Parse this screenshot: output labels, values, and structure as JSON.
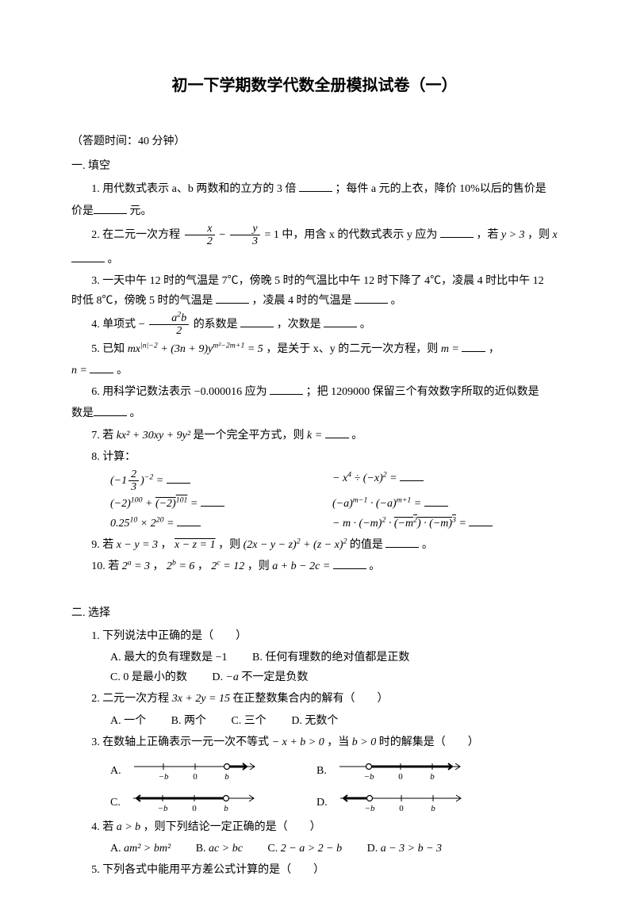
{
  "title": "初一下学期数学代数全册模拟试卷（一）",
  "meta": "（答题时间：40 分钟）",
  "sec1": {
    "head": "一. 填空",
    "q1a": "1. 用代数式表示 a、b 两数和的立方的 3 倍",
    "q1b": "；每件 a 元的上衣，降价 10%以后的售价是",
    "q1c": "元。",
    "q2a": "2. 在二元一次方程 ",
    "q2b": " 中，用含 x 的代数式表示 y 应为",
    "q2c": "，若 ",
    "q2d": "，则 ",
    "q2e": "。",
    "q3a": "3. 一天中午 12 时的气温是 7℃，傍晚 5 时的气温比中午 12 时下降了 4℃，凌晨 4 时比中午 12 时低 8℃，傍晚 5 时的气温是",
    "q3b": "，凌晨 4 时的气温是",
    "q3c": "。",
    "q4a": "4. 单项式 ",
    "q4b": " 的系数是",
    "q4c": "，次数是",
    "q4d": "。",
    "q5a": "5. 已知 ",
    "q5b": "，是关于 x、y 的二元一次方程，则 ",
    "q5c": "，",
    "q5d": "。",
    "q6a": "6. 用科学记数法表示 ",
    "q6b": " 应为",
    "q6c": "；把 1209000 保留三个有效数字所取的近似数是",
    "q6d": "。",
    "q7a": "7. 若 ",
    "q7b": " 是一个完全平方式，则 ",
    "q7c": "。",
    "q8": "8. 计算：",
    "q8l1": "(−1⅔)⁻² =",
    "q8r1": "− x⁴ ÷ (−x)² =",
    "q8l2": "(−2)¹⁰⁰ + (−2)¹⁰¹ =",
    "q8r2": "(−a)ᵐ⁻¹ · (−a)ᵐ⁺¹ =",
    "q8l3": "0.25¹⁰ × 2²⁰ =",
    "q8r3": "− m · (−m)² · (−m²) · (−m)³ =",
    "q9a": "9. 若 ",
    "q9b": "，",
    "q9c": "，则 ",
    "q9d": " 的值是",
    "q9e": "。",
    "q10a": "10. 若 ",
    "q10b": "，",
    "q10c": "，",
    "q10d": "，则 ",
    "q10e": "。"
  },
  "sec2": {
    "head": "二. 选择",
    "q1": "1. 下列说法中正确的是（　　）",
    "q1a": "A. 最大的负有理数是 ",
    "q1b": "B. 任何有理数的绝对值都是正数",
    "q1c": "C. 0 是最小的数",
    "q1d": "D. ",
    "q1d2": " 不一定是负数",
    "q2a": "2. 二元一次方程 ",
    "q2b": " 在正整数集合内的解有（　　）",
    "q2oA": "A. 一个",
    "q2oB": "B. 两个",
    "q2oC": "C. 三个",
    "q2oD": "D. 无数个",
    "q3a": "3. 在数轴上正确表示一元一次不等式 ",
    "q3b": "，当 ",
    "q3c": " 时的解集是（　　）",
    "q3A": "A.",
    "q3B": "B.",
    "q3C": "C.",
    "q3D": "D.",
    "q4a": "4. 若 ",
    "q4b": "，则下列结论一定正确的是（　　）",
    "q4oA": "A. ",
    "q4oB": "B. ",
    "q4oC": "C. ",
    "q4oD": "D. ",
    "q5": "5. 下列各式中能用平方差公式计算的是（　　）"
  },
  "numline": {
    "labels": [
      "−b",
      "0",
      "b"
    ],
    "font": "italic 11px Times"
  }
}
